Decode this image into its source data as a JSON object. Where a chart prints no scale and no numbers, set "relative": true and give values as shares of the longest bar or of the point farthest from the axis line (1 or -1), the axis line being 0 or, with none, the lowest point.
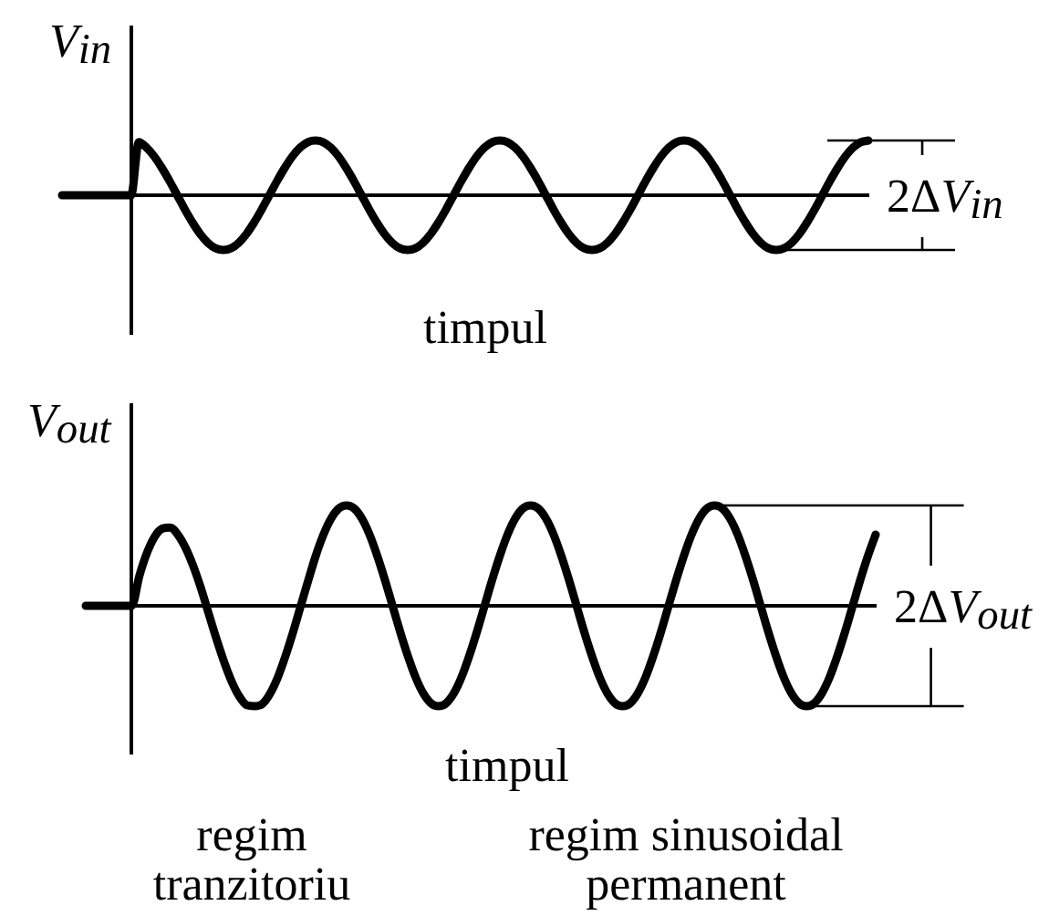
{
  "chart_data": [
    {
      "type": "line",
      "relative": true,
      "ylabel": "V$_{in}$",
      "xlabel": "timpul",
      "annotations": [
        "2ΔV$_{in}$"
      ],
      "categories": [
        null,
        null,
        null,
        null,
        null,
        null,
        null,
        null,
        null,
        null,
        null,
        null,
        null,
        null,
        null,
        null,
        null,
        null,
        null,
        null,
        null,
        null,
        null,
        null,
        null,
        null,
        null,
        null,
        null,
        null,
        null,
        null,
        null,
        null,
        null,
        null,
        null,
        null,
        null,
        null,
        null,
        null,
        null,
        null,
        null,
        null,
        null,
        null,
        null,
        null,
        null,
        null,
        null,
        null,
        null,
        null,
        null,
        null,
        null,
        null,
        null,
        null,
        null,
        null,
        null,
        null,
        null,
        null,
        null,
        null,
        null,
        null,
        null,
        null,
        null,
        null,
        null,
        null,
        null,
        null,
        null,
        null,
        null,
        null,
        null,
        null,
        null,
        null,
        null,
        null,
        null,
        null,
        null,
        null,
        null,
        null,
        null,
        null,
        null,
        null,
        null,
        null,
        null,
        null,
        null,
        null
      ],
      "series": [
        {
          "color": "#000000",
          "values": [
            0,
            0,
            0,
            0,
            0,
            0,
            0,
            0,
            0,
            0,
            0.97,
            0.87,
            0.71,
            0.5,
            0.26,
            0,
            -0.26,
            -0.5,
            -0.71,
            -0.87,
            -0.97,
            -1,
            -0.97,
            -0.87,
            -0.71,
            -0.5,
            -0.26,
            0,
            0.26,
            0.5,
            0.71,
            0.87,
            0.97,
            1,
            0.97,
            0.87,
            0.71,
            0.5,
            0.26,
            0,
            -0.26,
            -0.5,
            -0.71,
            -0.87,
            -0.97,
            -1,
            -0.97,
            -0.87,
            -0.71,
            -0.5,
            -0.26,
            0,
            0.26,
            0.5,
            0.71,
            0.87,
            0.97,
            1,
            0.97,
            0.87,
            0.71,
            0.5,
            0.26,
            0,
            -0.26,
            -0.5,
            -0.71,
            -0.87,
            -0.97,
            -1,
            -0.97,
            -0.87,
            -0.71,
            -0.5,
            -0.26,
            0,
            0.26,
            0.5,
            0.71,
            0.87,
            0.97,
            1,
            0.97,
            0.87,
            0.71,
            0.5,
            0.26,
            0,
            -0.26,
            -0.5,
            -0.71,
            -0.87,
            -0.97,
            -1,
            -0.97,
            -0.87,
            -0.71,
            -0.5,
            -0.26,
            0,
            0.26,
            0.5,
            0.71,
            0.87,
            0.97,
            1
          ]
        }
      ]
    },
    {
      "type": "line",
      "relative": true,
      "ylabel": "V$_{out}$",
      "xlabel": "timpul",
      "annotations": [
        "2ΔV$_{out}$",
        "regim tranzitoriu",
        "regim sinusoidal permanent"
      ],
      "categories": [
        null,
        null,
        null,
        null,
        null,
        null,
        null,
        null,
        null,
        null,
        null,
        null,
        null,
        null,
        null,
        null,
        null,
        null,
        null,
        null,
        null,
        null,
        null,
        null,
        null,
        null,
        null,
        null,
        null,
        null,
        null,
        null,
        null,
        null,
        null,
        null,
        null,
        null,
        null,
        null,
        null,
        null,
        null,
        null,
        null,
        null,
        null,
        null,
        null,
        null,
        null,
        null,
        null,
        null,
        null,
        null,
        null,
        null,
        null,
        null,
        null,
        null,
        null,
        null,
        null,
        null,
        null,
        null,
        null,
        null,
        null,
        null,
        null,
        null,
        null,
        null,
        null,
        null,
        null,
        null,
        null,
        null,
        null,
        null,
        null,
        null,
        null,
        null,
        null,
        null,
        null,
        null,
        null,
        null,
        null,
        null,
        null,
        null,
        null,
        null,
        null,
        null,
        null,
        null
      ],
      "series": [
        {
          "color": "#000000",
          "values": [
            0,
            0,
            0,
            0,
            0,
            0,
            0,
            0.3,
            0.53,
            0.69,
            0.77,
            0.78,
            0.71,
            0.58,
            0.4,
            0.18,
            -0.07,
            -0.32,
            -0.55,
            -0.75,
            -0.9,
            -0.99,
            -1,
            -0.98,
            -0.88,
            -0.72,
            -0.51,
            -0.27,
            -0.01,
            0.25,
            0.5,
            0.71,
            0.87,
            0.97,
            1,
            0.97,
            0.87,
            0.71,
            0.5,
            0.26,
            0,
            -0.26,
            -0.5,
            -0.71,
            -0.87,
            -0.97,
            -1,
            -0.97,
            -0.87,
            -0.71,
            -0.5,
            -0.26,
            0,
            0.26,
            0.5,
            0.71,
            0.87,
            0.97,
            1,
            0.97,
            0.87,
            0.71,
            0.5,
            0.26,
            0,
            -0.26,
            -0.5,
            -0.71,
            -0.87,
            -0.97,
            -1,
            -0.97,
            -0.87,
            -0.71,
            -0.5,
            -0.26,
            0,
            0.26,
            0.5,
            0.71,
            0.87,
            0.97,
            1,
            0.97,
            0.87,
            0.71,
            0.5,
            0.26,
            0,
            -0.26,
            -0.5,
            -0.71,
            -0.87,
            -0.97,
            -1,
            -0.97,
            -0.87,
            -0.71,
            -0.5,
            -0.26,
            0,
            0.26,
            0.5,
            0.71
          ]
        }
      ]
    }
  ]
}
